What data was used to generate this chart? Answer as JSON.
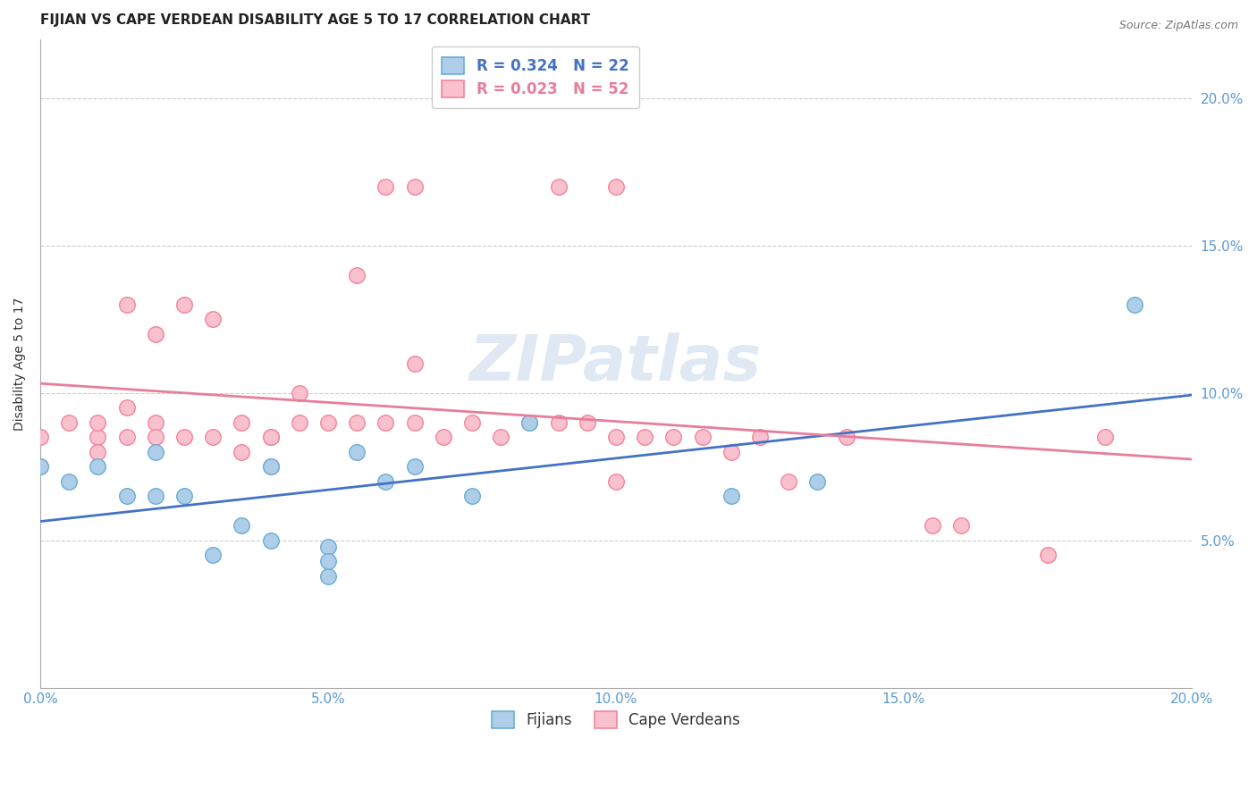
{
  "title": "FIJIAN VS CAPE VERDEAN DISABILITY AGE 5 TO 17 CORRELATION CHART",
  "source": "Source: ZipAtlas.com",
  "xlabel": "",
  "ylabel": "Disability Age 5 to 17",
  "xlim": [
    0.0,
    0.2
  ],
  "ylim": [
    0.0,
    0.22
  ],
  "xticks": [
    0.0,
    0.05,
    0.1,
    0.15,
    0.2
  ],
  "yticks": [
    0.05,
    0.1,
    0.15,
    0.2
  ],
  "xticklabels": [
    "0.0%",
    "5.0%",
    "10.0%",
    "15.0%",
    "20.0%"
  ],
  "yticklabels_right": [
    "5.0%",
    "10.0%",
    "15.0%",
    "20.0%"
  ],
  "fijian_color": "#aecde8",
  "capeverdean_color": "#f9c0ce",
  "fijian_edge_color": "#6aaed6",
  "capeverdean_edge_color": "#f4849c",
  "fijian_line_color": "#4472c4",
  "capeverdean_line_color": "#e87d9a",
  "fijian_R": 0.324,
  "fijian_N": 22,
  "capeverdean_R": 0.023,
  "capeverdean_N": 52,
  "fijian_x": [
    0.0,
    0.005,
    0.01,
    0.015,
    0.02,
    0.02,
    0.025,
    0.03,
    0.035,
    0.04,
    0.04,
    0.05,
    0.05,
    0.05,
    0.055,
    0.06,
    0.065,
    0.075,
    0.085,
    0.12,
    0.135,
    0.19
  ],
  "fijian_y": [
    0.075,
    0.07,
    0.075,
    0.065,
    0.08,
    0.065,
    0.065,
    0.045,
    0.055,
    0.05,
    0.075,
    0.038,
    0.048,
    0.043,
    0.08,
    0.07,
    0.075,
    0.065,
    0.09,
    0.065,
    0.07,
    0.13
  ],
  "capeverdean_x": [
    0.0,
    0.0,
    0.005,
    0.01,
    0.01,
    0.01,
    0.015,
    0.015,
    0.015,
    0.02,
    0.02,
    0.02,
    0.025,
    0.025,
    0.03,
    0.03,
    0.035,
    0.035,
    0.04,
    0.04,
    0.04,
    0.045,
    0.045,
    0.05,
    0.055,
    0.055,
    0.06,
    0.06,
    0.065,
    0.065,
    0.065,
    0.07,
    0.075,
    0.08,
    0.085,
    0.09,
    0.09,
    0.095,
    0.1,
    0.1,
    0.1,
    0.105,
    0.11,
    0.115,
    0.12,
    0.125,
    0.13,
    0.14,
    0.155,
    0.16,
    0.175,
    0.185
  ],
  "capeverdean_y": [
    0.085,
    0.075,
    0.09,
    0.085,
    0.08,
    0.09,
    0.095,
    0.085,
    0.13,
    0.12,
    0.09,
    0.085,
    0.085,
    0.13,
    0.085,
    0.125,
    0.08,
    0.09,
    0.075,
    0.085,
    0.085,
    0.09,
    0.1,
    0.09,
    0.09,
    0.14,
    0.09,
    0.17,
    0.17,
    0.09,
    0.11,
    0.085,
    0.09,
    0.085,
    0.09,
    0.09,
    0.17,
    0.09,
    0.07,
    0.085,
    0.17,
    0.085,
    0.085,
    0.085,
    0.08,
    0.085,
    0.07,
    0.085,
    0.055,
    0.055,
    0.045,
    0.085
  ],
  "watermark_text": "ZIPatlas",
  "grid_color": "#cccccc",
  "title_fontsize": 11,
  "axis_label_fontsize": 10,
  "tick_fontsize": 11,
  "legend_fontsize": 12
}
